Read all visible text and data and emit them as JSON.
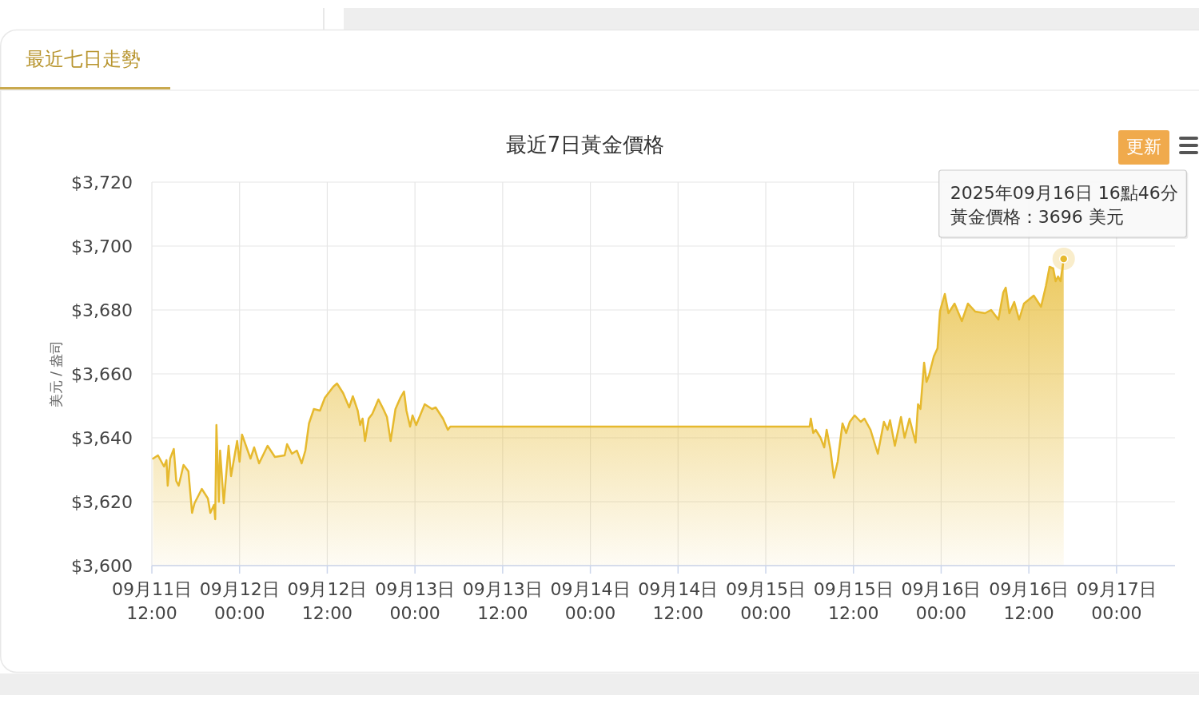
{
  "chart_data": {
    "type": "area",
    "title": "最近7日黃金價格",
    "ylabel": "美元 / 盎司",
    "annotations": [
      "最近七日走勢",
      "更新",
      "2025年09月16日 16點46分",
      {
        "text": "黃金價格：3696 美元",
        "x": "2025-09-16T16:46",
        "y": 3696
      }
    ],
    "x": [
      "2025-09-11T12:10",
      "2025-09-11T12:50",
      "2025-09-11T13:40",
      "2025-09-11T14:00",
      "2025-09-11T14:10",
      "2025-09-11T14:30",
      "2025-09-11T15:00",
      "2025-09-11T15:20",
      "2025-09-11T15:40",
      "2025-09-11T16:20",
      "2025-09-11T17:00",
      "2025-09-11T17:30",
      "2025-09-11T17:50",
      "2025-09-11T18:50",
      "2025-09-11T19:40",
      "2025-09-11T20:00",
      "2025-09-11T20:30",
      "2025-09-11T20:40",
      "2025-09-11T20:50",
      "2025-09-11T21:10",
      "2025-09-11T21:20",
      "2025-09-11T21:50",
      "2025-09-11T22:30",
      "2025-09-11T22:50",
      "2025-09-11T23:40",
      "2025-09-12T00:00",
      "2025-09-12T00:20",
      "2025-09-12T01:30",
      "2025-09-12T02:00",
      "2025-09-12T02:40",
      "2025-09-12T03:50",
      "2025-09-12T04:50",
      "2025-09-12T06:10",
      "2025-09-12T06:30",
      "2025-09-12T07:10",
      "2025-09-12T07:50",
      "2025-09-12T08:30",
      "2025-09-12T09:00",
      "2025-09-12T09:30",
      "2025-09-12T10:10",
      "2025-09-12T11:00",
      "2025-09-12T11:40",
      "2025-09-12T12:50",
      "2025-09-12T13:20",
      "2025-09-12T14:10",
      "2025-09-12T15:00",
      "2025-09-12T15:30",
      "2025-09-12T16:10",
      "2025-09-12T16:30",
      "2025-09-12T16:50",
      "2025-09-12T17:10",
      "2025-09-12T17:40",
      "2025-09-12T18:10",
      "2025-09-12T19:00",
      "2025-09-12T19:40",
      "2025-09-12T20:10",
      "2025-09-12T20:40",
      "2025-09-12T21:20",
      "2025-09-12T22:00",
      "2025-09-12T22:30",
      "2025-09-12T22:50",
      "2025-09-12T23:20",
      "2025-09-12T23:40",
      "2025-09-13T00:10",
      "2025-09-13T01:20",
      "2025-09-13T02:20",
      "2025-09-13T02:50",
      "2025-09-13T03:50",
      "2025-09-13T04:30",
      "2025-09-13T04:50",
      "2025-09-15T06:00",
      "2025-09-15T06:10",
      "2025-09-15T06:30",
      "2025-09-15T06:50",
      "2025-09-15T07:30",
      "2025-09-15T08:00",
      "2025-09-15T08:20",
      "2025-09-15T08:50",
      "2025-09-15T09:20",
      "2025-09-15T09:50",
      "2025-09-15T10:30",
      "2025-09-15T11:00",
      "2025-09-15T11:30",
      "2025-09-15T12:10",
      "2025-09-15T13:00",
      "2025-09-15T13:30",
      "2025-09-15T14:20",
      "2025-09-15T15:20",
      "2025-09-15T15:30",
      "2025-09-15T16:10",
      "2025-09-15T16:40",
      "2025-09-15T17:00",
      "2025-09-15T17:40",
      "2025-09-15T18:30",
      "2025-09-15T19:00",
      "2025-09-15T19:40",
      "2025-09-15T20:30",
      "2025-09-15T20:50",
      "2025-09-15T21:10",
      "2025-09-15T21:40",
      "2025-09-15T22:00",
      "2025-09-15T22:20",
      "2025-09-15T23:00",
      "2025-09-15T23:30",
      "2025-09-15T23:50",
      "2025-09-16T00:00",
      "2025-09-16T00:30",
      "2025-09-16T01:00",
      "2025-09-16T01:50",
      "2025-09-16T02:50",
      "2025-09-16T03:40",
      "2025-09-16T04:40",
      "2025-09-16T06:00",
      "2025-09-16T06:50",
      "2025-09-16T07:50",
      "2025-09-16T08:30",
      "2025-09-16T08:50",
      "2025-09-16T09:20",
      "2025-09-16T10:00",
      "2025-09-16T10:40",
      "2025-09-16T11:20",
      "2025-09-16T12:40",
      "2025-09-16T13:40",
      "2025-09-16T14:20",
      "2025-09-16T14:50",
      "2025-09-16T15:20",
      "2025-09-16T15:40",
      "2025-09-16T16:00",
      "2025-09-16T16:20",
      "2025-09-16T16:46"
    ],
    "series": [
      {
        "color": "#e6b92e",
        "values": [
          3633.5,
          3634.5,
          3631,
          3633,
          3625,
          3633.5,
          3636.5,
          3626.5,
          3625,
          3631.5,
          3629.5,
          3616.5,
          3619.5,
          3624,
          3621,
          3616.5,
          3619,
          3614.5,
          3644,
          3620,
          3636,
          3619.5,
          3637.5,
          3628,
          3639,
          3632.5,
          3641,
          3633.5,
          3637,
          3632,
          3637.5,
          3634,
          3634.5,
          3638,
          3635,
          3636,
          3632,
          3636,
          3644.5,
          3649,
          3648.5,
          3652.5,
          3656,
          3657,
          3654,
          3649.5,
          3653,
          3648.5,
          3644,
          3646,
          3639,
          3646,
          3647.5,
          3652,
          3649,
          3646.5,
          3639,
          3649,
          3652.5,
          3654.5,
          3648.5,
          3643.5,
          3647,
          3644,
          3650.5,
          3649,
          3649.5,
          3646,
          3642.5,
          3643.5,
          3643.5,
          3646,
          3641.5,
          3642.5,
          3640,
          3637,
          3642.5,
          3636.5,
          3627.5,
          3632.5,
          3644.5,
          3641.5,
          3645,
          3647,
          3645,
          3646,
          3642.5,
          3635,
          3637,
          3645,
          3642.5,
          3645.5,
          3637.5,
          3646.5,
          3640,
          3646,
          3638.5,
          3650.5,
          3649,
          3663.5,
          3657.5,
          3659.5,
          3665.5,
          3668,
          3679.5,
          3681,
          3685,
          3679,
          3682,
          3676.5,
          3682,
          3679.5,
          3679,
          3680,
          3677,
          3685.5,
          3687,
          3679,
          3682.5,
          3677,
          3682,
          3684.5,
          3681,
          3687.5,
          3693.5,
          3693,
          3689,
          3690.5,
          3689,
          3696
        ]
      }
    ],
    "xlim": [
      "2025-09-11T12:00",
      "2025-09-17T08:00"
    ],
    "xticks": [
      {
        "value": "2025-09-11T12:00",
        "label": "09月11日\n12:00"
      },
      {
        "value": "2025-09-12T00:00",
        "label": "09月12日\n00:00"
      },
      {
        "value": "2025-09-12T12:00",
        "label": "09月12日\n12:00"
      },
      {
        "value": "2025-09-13T00:00",
        "label": "09月13日\n00:00"
      },
      {
        "value": "2025-09-13T12:00",
        "label": "09月13日\n12:00"
      },
      {
        "value": "2025-09-14T00:00",
        "label": "09月14日\n00:00"
      },
      {
        "value": "2025-09-14T12:00",
        "label": "09月14日\n12:00"
      },
      {
        "value": "2025-09-15T00:00",
        "label": "09月15日\n00:00"
      },
      {
        "value": "2025-09-15T12:00",
        "label": "09月15日\n12:00"
      },
      {
        "value": "2025-09-16T00:00",
        "label": "09月16日\n00:00"
      },
      {
        "value": "2025-09-16T12:00",
        "label": "09月16日\n12:00"
      },
      {
        "value": "2025-09-17T00:00",
        "label": "09月17日\n00:00"
      }
    ],
    "ylim": [
      3600,
      3720
    ],
    "yticks": [
      {
        "value": 3600,
        "label": "$3,600"
      },
      {
        "value": 3620,
        "label": "$3,620"
      },
      {
        "value": 3640,
        "label": "$3,640"
      },
      {
        "value": 3660,
        "label": "$3,660"
      },
      {
        "value": 3680,
        "label": "$3,680"
      },
      {
        "value": 3700,
        "label": "$3,700"
      },
      {
        "value": 3720,
        "label": "$3,720"
      }
    ],
    "grid": true
  }
}
